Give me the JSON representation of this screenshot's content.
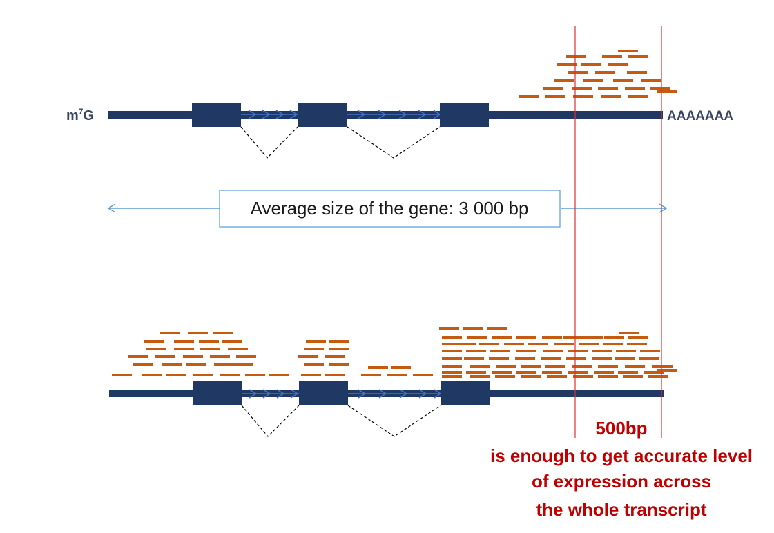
{
  "cap_label": {
    "prefix": "m",
    "superscript": "7",
    "suffix": "G"
  },
  "polya_label": "AAAAAAA",
  "size_label": "Average size of the gene: 3 000 bp",
  "window_label": "500bp",
  "note_lines": [
    "is enough to get accurate level",
    "of expression across",
    "the whole transcript"
  ],
  "colors": {
    "transcript": "#1f3864",
    "intron": "#4472c4",
    "read": "#c55a11",
    "window_line": "#e03030",
    "range_arrow": "#5b9bd5",
    "note_text": "#c00000",
    "label_text": "#3a4560"
  }
}
